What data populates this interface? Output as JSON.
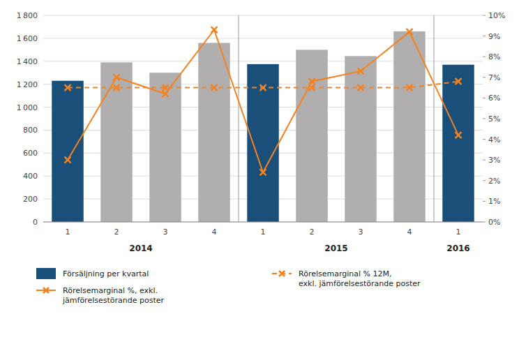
{
  "chart_data": {
    "type": "bar",
    "categories": [
      "1",
      "2",
      "3",
      "4",
      "1",
      "2",
      "3",
      "4",
      "1"
    ],
    "series": [
      {
        "name": "Försäljning per kvartal",
        "type": "bar",
        "color": "#1a4f7a",
        "colors": [
          "#1a4f7a",
          "#b0aeae",
          "#b0aeae",
          "#b0aeae",
          "#1a4f7a",
          "#b0aeae",
          "#b0aeae",
          "#b0aeae",
          "#1a4f7a"
        ],
        "values": [
          1230,
          1390,
          1300,
          1560,
          1375,
          1500,
          1445,
          1660,
          1370
        ]
      },
      {
        "name": "Rörelsemarginal %, exkl.\njämförelsestörande poster",
        "type": "line",
        "axis": "y2",
        "color": "#f5821e",
        "marker": "x",
        "line_style": "solid",
        "values": [
          3.0,
          7.0,
          6.2,
          9.3,
          2.4,
          6.8,
          7.3,
          9.2,
          4.2
        ]
      },
      {
        "name": "Rörelsemarginal % 12M,\nexkl. jämförelsestörande poster",
        "type": "line",
        "axis": "y2",
        "color": "#f5821e",
        "marker": "x",
        "line_style": "dashed",
        "values": [
          6.5,
          6.5,
          6.5,
          6.5,
          6.5,
          6.5,
          6.5,
          6.5,
          6.8
        ]
      }
    ],
    "annotations": [
      {
        "text": "2014",
        "x": 2.5
      },
      {
        "text": "2015",
        "x": 6.5
      },
      {
        "text": "2016",
        "x": 9.0
      }
    ],
    "dividers": [
      4.5,
      8.5
    ],
    "ylim": [
      0,
      1800
    ],
    "yticks": [
      0,
      200,
      400,
      600,
      800,
      {
        "value": 1000,
        "label": "1 000"
      },
      {
        "value": 1200,
        "label": "1 200"
      },
      {
        "value": 1400,
        "label": "1 400"
      },
      {
        "value": 1600,
        "label": "1 600"
      },
      {
        "value": 1800,
        "label": "1 800"
      }
    ],
    "y2lim": [
      0,
      10
    ],
    "y2ticks": [
      {
        "value": 0,
        "label": "0%"
      },
      {
        "value": 1,
        "label": "1%"
      },
      {
        "value": 2,
        "label": "2%"
      },
      {
        "value": 3,
        "label": "3%"
      },
      {
        "value": 4,
        "label": "4%"
      },
      {
        "value": 5,
        "label": "5%"
      },
      {
        "value": 6,
        "label": "6%"
      },
      {
        "value": 7,
        "label": "7%"
      },
      {
        "value": 8,
        "label": "8%"
      },
      {
        "value": 9,
        "label": "9%"
      },
      {
        "value": 10,
        "label": "10%"
      }
    ],
    "grid": true,
    "legend": "bottom"
  }
}
